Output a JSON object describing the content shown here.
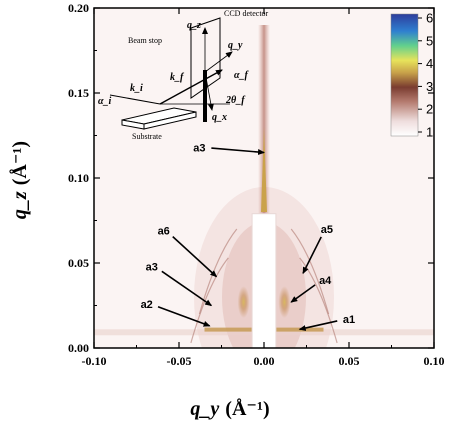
{
  "chart_data": {
    "type": "heatmap",
    "title": "",
    "xlabel": "q_y",
    "xunit": "(Å⁻¹)",
    "ylabel": "q_z",
    "yunit": "(Å⁻¹)",
    "xlim": [
      -0.1,
      0.1
    ],
    "ylim": [
      0.0,
      0.2
    ],
    "xticks": [
      -0.1,
      -0.05,
      0.0,
      0.05,
      0.1
    ],
    "xtick_labels": [
      "-0.10",
      "-0.05",
      "0.00",
      "0.05",
      "0.10"
    ],
    "yticks": [
      0.0,
      0.05,
      0.1,
      0.15,
      0.2
    ],
    "ytick_labels": [
      "0.00",
      "0.05",
      "0.10",
      "0.15",
      "0.20"
    ],
    "grid": false,
    "colorbar": {
      "position": "top-right",
      "range": [
        1,
        6
      ],
      "ticks": [
        1,
        2,
        3,
        4,
        5,
        6
      ],
      "tick_labels": [
        "1",
        "2",
        "3",
        "4",
        "5",
        "6"
      ],
      "colors": [
        "#ffffff",
        "#e7cfcf",
        "#8a4a3c",
        "#c6a23e",
        "#e7e35b",
        "#5fcf8f",
        "#2f7fd0",
        "#2d3d9c"
      ]
    },
    "beam_stop": {
      "qy_range": [
        -0.007,
        0.007
      ],
      "qz_range": [
        0.0,
        0.079
      ]
    },
    "annotations": [
      {
        "label": "a3",
        "arrow_tip": [
          0.0,
          0.115
        ],
        "text_pos": [
          -0.038,
          0.118
        ]
      },
      {
        "label": "a6",
        "arrow_tip": [
          -0.028,
          0.042
        ],
        "text_pos": [
          -0.059,
          0.069
        ]
      },
      {
        "label": "a3",
        "arrow_tip": [
          -0.031,
          0.025
        ],
        "text_pos": [
          -0.066,
          0.048
        ]
      },
      {
        "label": "a2",
        "arrow_tip": [
          -0.032,
          0.013
        ],
        "text_pos": [
          -0.069,
          0.026
        ]
      },
      {
        "label": "a5",
        "arrow_tip": [
          0.023,
          0.044
        ],
        "text_pos": [
          0.037,
          0.07
        ]
      },
      {
        "label": "a4",
        "arrow_tip": [
          0.016,
          0.027
        ],
        "text_pos": [
          0.036,
          0.04
        ]
      },
      {
        "label": "a1",
        "arrow_tip": [
          0.021,
          0.011
        ],
        "text_pos": [
          0.05,
          0.017
        ]
      }
    ],
    "inset": {
      "labels": [
        "Beam stop",
        "CCD detector",
        "Substrate"
      ],
      "vars": [
        "q_z",
        "q_y",
        "q_x",
        "k_i",
        "k_f",
        "α_i",
        "α_f",
        "2θ_f"
      ]
    }
  }
}
